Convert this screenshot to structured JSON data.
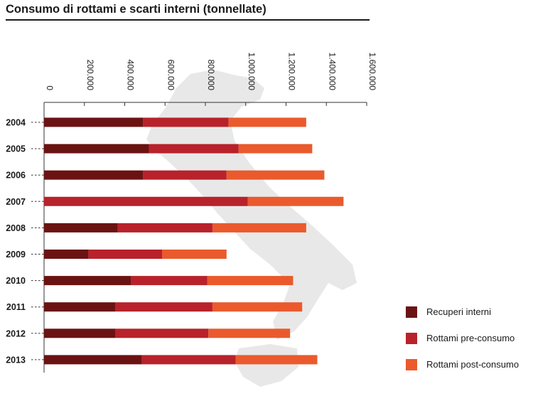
{
  "chart_data": {
    "type": "bar",
    "orientation": "horizontal",
    "stacked": true,
    "title": "Consumo di rottami e scarti interni (tonnellate)",
    "xlabel": "",
    "ylabel": "",
    "xlim": [
      0,
      1600000
    ],
    "x_ticks": [
      0,
      200000,
      400000,
      600000,
      800000,
      1000000,
      1200000,
      1400000,
      1600000
    ],
    "x_tick_labels": [
      "0",
      "200.000",
      "400.000",
      "600.000",
      "800.000",
      "1.000.000",
      "1.200.000",
      "1.400.000",
      "1.600.000"
    ],
    "tick_label_rotation": "vertical",
    "x_axis_position": "top",
    "grid": false,
    "legend_position": "right-bottom",
    "categories": [
      "2004",
      "2005",
      "2006",
      "2007",
      "2008",
      "2009",
      "2010",
      "2011",
      "2012",
      "2013"
    ],
    "series": [
      {
        "name": "Recuperi interni",
        "color": "#6b1313",
        "values": [
          490000,
          520000,
          490000,
          0,
          365000,
          220000,
          430000,
          355000,
          355000,
          485000
        ]
      },
      {
        "name": "Rottami pre-consumo",
        "color": "#b8222b",
        "values": [
          425000,
          445000,
          415000,
          1010000,
          470000,
          365000,
          380000,
          480000,
          460000,
          465000
        ]
      },
      {
        "name": "Rottami post-consumo",
        "color": "#ea5a2d",
        "values": [
          385000,
          365000,
          485000,
          475000,
          465000,
          320000,
          425000,
          445000,
          405000,
          405000
        ]
      }
    ],
    "background_image": "italy-map-silhouette"
  }
}
